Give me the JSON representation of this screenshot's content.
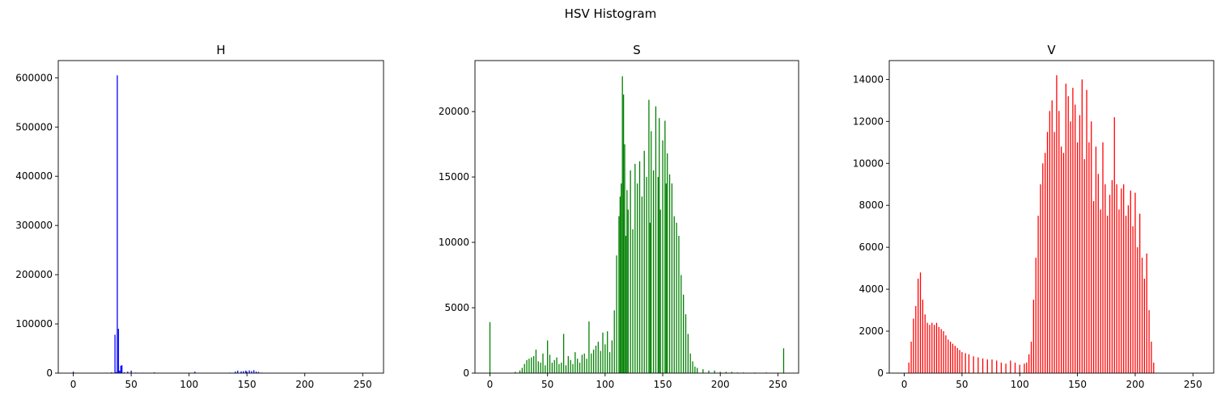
{
  "figure": {
    "title": "HSV Histogram"
  },
  "chart_data": [
    {
      "type": "bar",
      "title": "H",
      "color": "#0000ff",
      "xlim": [
        -13,
        268
      ],
      "ylim": [
        0,
        635000
      ],
      "xticks": [
        0,
        50,
        100,
        150,
        200,
        250
      ],
      "yticks": [
        0,
        100000,
        200000,
        300000,
        400000,
        500000,
        600000
      ],
      "x": [
        0,
        28,
        30,
        33,
        36,
        37,
        38,
        39,
        40,
        41,
        42,
        44,
        47,
        50,
        54,
        60,
        70,
        105,
        135,
        140,
        142,
        145,
        147,
        149,
        150,
        152,
        154,
        156,
        158,
        160,
        163,
        166
      ],
      "values": [
        3000,
        500,
        800,
        1500,
        78000,
        2000,
        605000,
        90000,
        5000,
        15000,
        16000,
        1500,
        3000,
        5000,
        1000,
        700,
        1500,
        3000,
        1000,
        3000,
        5000,
        3500,
        4000,
        5000,
        3000,
        5500,
        4000,
        6000,
        3000,
        2500,
        1000,
        500
      ]
    },
    {
      "type": "bar",
      "title": "S",
      "color": "#008000",
      "xlim": [
        -13,
        268
      ],
      "ylim": [
        0,
        23900
      ],
      "xticks": [
        0,
        50,
        100,
        150,
        200,
        250
      ],
      "yticks": [
        0,
        5000,
        10000,
        15000,
        20000
      ],
      "x": [
        0,
        22,
        26,
        28,
        30,
        32,
        34,
        36,
        38,
        40,
        42,
        44,
        46,
        48,
        50,
        52,
        54,
        56,
        58,
        60,
        62,
        64,
        66,
        68,
        70,
        72,
        74,
        76,
        78,
        80,
        82,
        84,
        86,
        88,
        90,
        92,
        94,
        96,
        98,
        100,
        102,
        104,
        106,
        108,
        110,
        112,
        113,
        114,
        115,
        116,
        117,
        118,
        119,
        120,
        122,
        124,
        126,
        128,
        130,
        132,
        134,
        136,
        138,
        139,
        140,
        142,
        144,
        146,
        147,
        148,
        150,
        152,
        153,
        154,
        156,
        158,
        160,
        162,
        164,
        166,
        168,
        170,
        172,
        174,
        176,
        178,
        180,
        185,
        190,
        195,
        200,
        205,
        210,
        215,
        220,
        230,
        240,
        255
      ],
      "values": [
        3900,
        100,
        200,
        400,
        700,
        1000,
        1100,
        1200,
        1300,
        1800,
        900,
        800,
        1500,
        600,
        2500,
        1400,
        800,
        1000,
        1200,
        700,
        800,
        3000,
        600,
        1300,
        1000,
        700,
        1600,
        1100,
        800,
        1400,
        1500,
        1100,
        3950,
        1500,
        1800,
        2100,
        2400,
        1700,
        3100,
        2200,
        3200,
        1600,
        2500,
        4800,
        9000,
        12000,
        13500,
        14500,
        22700,
        21300,
        17500,
        10500,
        14000,
        12500,
        15500,
        11000,
        16000,
        14500,
        16200,
        13500,
        17000,
        15000,
        20900,
        11500,
        18500,
        15500,
        20400,
        15000,
        19500,
        12500,
        17800,
        19300,
        14500,
        16800,
        15200,
        14500,
        12000,
        11500,
        10500,
        7500,
        6000,
        4500,
        3000,
        1500,
        900,
        500,
        400,
        300,
        200,
        200,
        100,
        100,
        100,
        50,
        50,
        50,
        50,
        1900
      ]
    },
    {
      "type": "bar",
      "title": "V",
      "color": "#ff0000",
      "xlim": [
        -13,
        268
      ],
      "ylim": [
        0,
        14900
      ],
      "xticks": [
        0,
        50,
        100,
        150,
        200,
        250
      ],
      "yticks": [
        0,
        2000,
        4000,
        6000,
        8000,
        10000,
        12000,
        14000
      ],
      "x": [
        4,
        6,
        8,
        10,
        12,
        14,
        16,
        18,
        20,
        22,
        24,
        26,
        28,
        30,
        32,
        34,
        36,
        38,
        40,
        42,
        44,
        46,
        48,
        50,
        53,
        56,
        60,
        64,
        68,
        72,
        76,
        80,
        84,
        88,
        92,
        96,
        100,
        104,
        106,
        108,
        110,
        112,
        114,
        116,
        118,
        120,
        122,
        124,
        126,
        128,
        130,
        132,
        134,
        136,
        138,
        140,
        142,
        144,
        146,
        148,
        150,
        152,
        154,
        156,
        158,
        160,
        162,
        164,
        166,
        168,
        170,
        172,
        174,
        176,
        178,
        180,
        182,
        184,
        186,
        188,
        190,
        192,
        194,
        196,
        198,
        200,
        202,
        204,
        206,
        208,
        210,
        212,
        214,
        216
      ],
      "values": [
        500,
        1500,
        2600,
        3200,
        4500,
        4800,
        3500,
        2800,
        2400,
        2300,
        2400,
        2300,
        2400,
        2200,
        2100,
        2000,
        1800,
        1600,
        1500,
        1400,
        1300,
        1200,
        1100,
        1000,
        950,
        900,
        800,
        750,
        700,
        650,
        650,
        600,
        500,
        450,
        600,
        500,
        400,
        450,
        500,
        900,
        1500,
        3500,
        5500,
        7500,
        9000,
        10000,
        10500,
        11500,
        12500,
        13000,
        11500,
        14200,
        12500,
        10800,
        10500,
        13800,
        13200,
        12000,
        13600,
        12800,
        11000,
        12300,
        14000,
        10200,
        13500,
        11000,
        12000,
        8200,
        10800,
        9500,
        7800,
        11000,
        9000,
        7500,
        8500,
        9200,
        12200,
        9000,
        7800,
        8800,
        9000,
        7500,
        8000,
        8700,
        7000,
        8600,
        6000,
        7600,
        5500,
        4500,
        5700,
        3000,
        1500,
        500
      ]
    }
  ]
}
